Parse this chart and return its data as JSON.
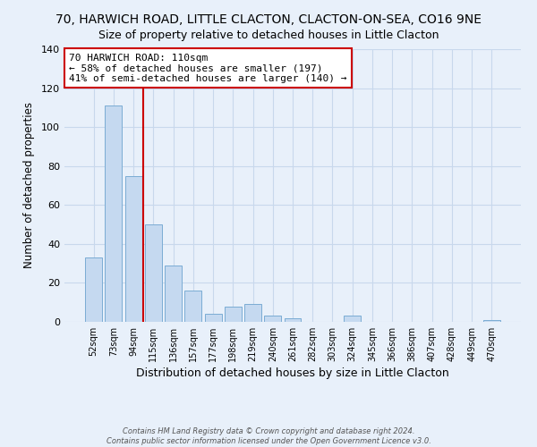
{
  "title": "70, HARWICH ROAD, LITTLE CLACTON, CLACTON-ON-SEA, CO16 9NE",
  "subtitle": "Size of property relative to detached houses in Little Clacton",
  "xlabel": "Distribution of detached houses by size in Little Clacton",
  "ylabel": "Number of detached properties",
  "bar_labels": [
    "52sqm",
    "73sqm",
    "94sqm",
    "115sqm",
    "136sqm",
    "157sqm",
    "177sqm",
    "198sqm",
    "219sqm",
    "240sqm",
    "261sqm",
    "282sqm",
    "303sqm",
    "324sqm",
    "345sqm",
    "366sqm",
    "386sqm",
    "407sqm",
    "428sqm",
    "449sqm",
    "470sqm"
  ],
  "bar_values": [
    33,
    111,
    75,
    50,
    29,
    16,
    4,
    8,
    9,
    3,
    2,
    0,
    0,
    3,
    0,
    0,
    0,
    0,
    0,
    0,
    1
  ],
  "bar_color": "#c5d9f0",
  "bar_edge_color": "#7bacd4",
  "ylim": [
    0,
    140
  ],
  "yticks": [
    0,
    20,
    40,
    60,
    80,
    100,
    120,
    140
  ],
  "vline_color": "#cc0000",
  "vline_pos": 2.5,
  "annotation_title": "70 HARWICH ROAD: 110sqm",
  "annotation_line1": "← 58% of detached houses are smaller (197)",
  "annotation_line2": "41% of semi-detached houses are larger (140) →",
  "annotation_box_color": "#ffffff",
  "annotation_box_edge_color": "#cc0000",
  "footer1": "Contains HM Land Registry data © Crown copyright and database right 2024.",
  "footer2": "Contains public sector information licensed under the Open Government Licence v3.0.",
  "background_color": "#e8f0fa",
  "grid_color": "#c8d8ec",
  "title_fontsize": 10,
  "subtitle_fontsize": 9
}
